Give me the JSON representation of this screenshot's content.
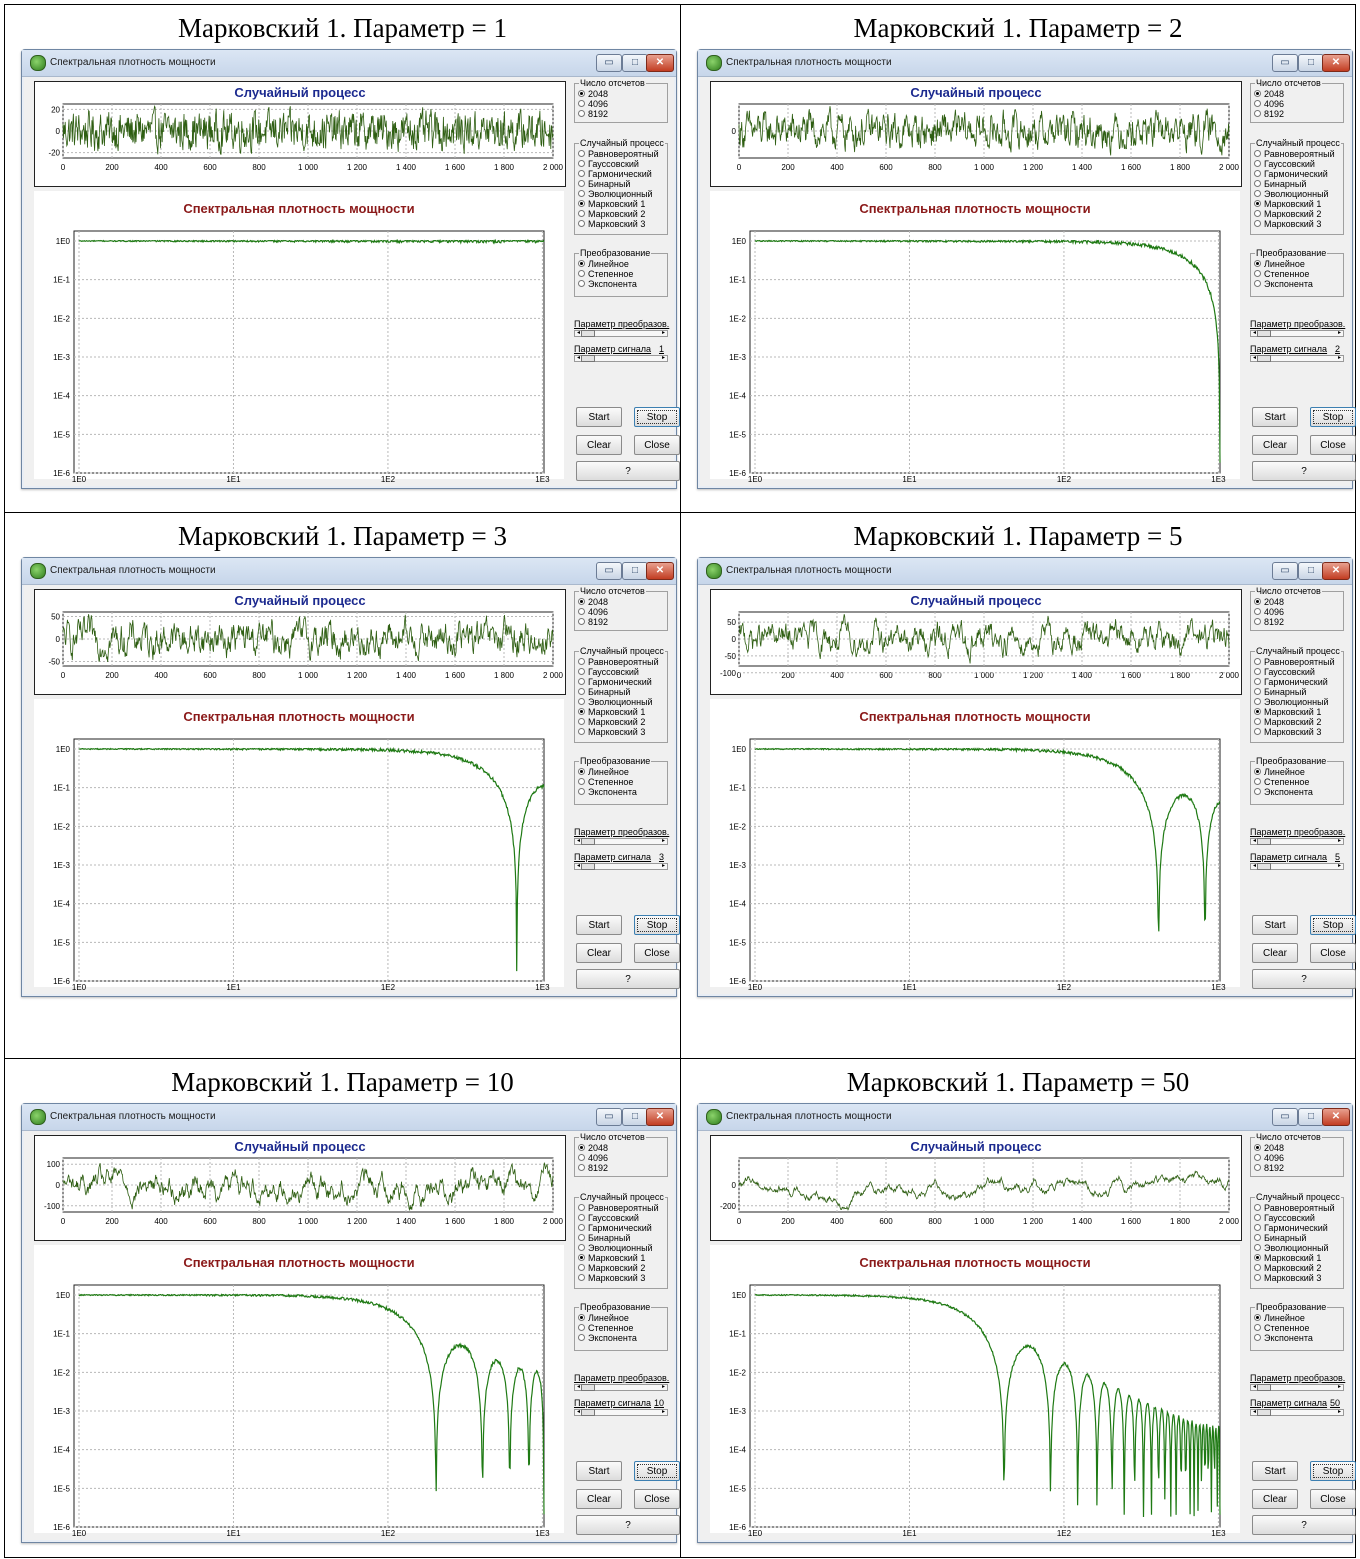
{
  "window": {
    "title": "Спектральная плотность мощности",
    "min_icon": "minimize-icon",
    "max_icon": "maximize-icon",
    "close_icon": "close-icon"
  },
  "labels": {
    "process_title": "Случайный процесс",
    "spectrum_title": "Спектральная плотность мощности",
    "samples_group": "Число отсчетов",
    "samples_options": [
      "2048",
      "4096",
      "8192"
    ],
    "samples_selected": "2048",
    "process_group": "Случайный процесс",
    "process_options": [
      "Равновероятный",
      "Гауссовский",
      "Гармонический",
      "Бинарный",
      "Эволюционный",
      "Марковский 1",
      "Марковский 2",
      "Марковский 3"
    ],
    "process_selected": "Марковский 1",
    "transform_group": "Преобразование",
    "transform_options": [
      "Линейное",
      "Степенное",
      "Экспонента"
    ],
    "transform_selected": "Линейное",
    "transform_param_label": "Параметр преобразов.",
    "signal_param_label": "Параметр сигнала",
    "buttons": {
      "start": "Start",
      "stop": "Stop",
      "clear": "Clear",
      "close": "Close",
      "help": "?"
    }
  },
  "colors": {
    "process_line": "#2e5e12",
    "spectrum_line": "#1f7a14",
    "grid": "#b8b8b8"
  },
  "axes": {
    "process_x_ticks": [
      "0",
      "200",
      "400",
      "600",
      "800",
      "1 000",
      "1 200",
      "1 400",
      "1 600",
      "1 800",
      "2 000"
    ],
    "spectrum_x_ticks": [
      "1E0",
      "1E1",
      "1E2",
      "1E3"
    ],
    "spectrum_y_ticks": [
      "1E0",
      "1E-1",
      "1E-2",
      "1E-3",
      "1E-4",
      "1E-5",
      "1E-6"
    ],
    "spectrum_scale": "log-log"
  },
  "panels": [
    {
      "caption": "Марковский 1. Параметр = 1",
      "param": 1,
      "param_label": "1",
      "process_y_ticks": [
        "20",
        "0",
        "-20"
      ],
      "process_amplitude": 25,
      "chart_data": {
        "type": "line",
        "xlabel": "",
        "ylabel": "",
        "x_range": [
          1,
          1024
        ],
        "y_range": [
          "1E-6",
          "1E0"
        ],
        "lobes": 0
      }
    },
    {
      "caption": "Марковский 1. Параметр = 2",
      "param": 2,
      "param_label": "2",
      "process_y_ticks": [
        "0"
      ],
      "process_amplitude": 30,
      "chart_data": {
        "type": "line",
        "xlabel": "",
        "ylabel": "",
        "x_range": [
          1,
          1024
        ],
        "y_range": [
          "1E-6",
          "1E0"
        ],
        "lobes": 0
      }
    },
    {
      "caption": "Марковский 1. Параметр = 3",
      "param": 3,
      "param_label": "3",
      "process_y_ticks": [
        "50",
        "0",
        "-50"
      ],
      "process_amplitude": 60,
      "chart_data": {
        "type": "line",
        "xlabel": "",
        "ylabel": "",
        "x_range": [
          1,
          1024
        ],
        "y_range": [
          "1E-6",
          "1E0"
        ],
        "lobes": 1
      }
    },
    {
      "caption": "Марковский 1. Параметр = 5",
      "param": 5,
      "param_label": "5",
      "process_y_ticks": [
        "50",
        "0",
        "-50",
        "-100"
      ],
      "process_amplitude": 80,
      "chart_data": {
        "type": "line",
        "xlabel": "",
        "ylabel": "",
        "x_range": [
          1,
          1024
        ],
        "y_range": [
          "1E-6",
          "1E0"
        ],
        "lobes": 2
      }
    },
    {
      "caption": "Марковский 1. Параметр = 10",
      "param": 10,
      "param_label": "10",
      "process_y_ticks": [
        "100",
        "0",
        "-100"
      ],
      "process_amplitude": 130,
      "chart_data": {
        "type": "line",
        "xlabel": "",
        "ylabel": "",
        "x_range": [
          1,
          1024
        ],
        "y_range": [
          "1E-6",
          "1E0"
        ],
        "lobes": 4
      }
    },
    {
      "caption": "Марковский 1. Параметр = 50",
      "param": 50,
      "param_label": "50",
      "process_y_ticks": [
        "0",
        "-200"
      ],
      "process_amplitude": 260,
      "chart_data": {
        "type": "line",
        "xlabel": "",
        "ylabel": "",
        "x_range": [
          1,
          1024
        ],
        "y_range": [
          "1E-6",
          "1E0"
        ],
        "lobes": 20
      }
    }
  ]
}
